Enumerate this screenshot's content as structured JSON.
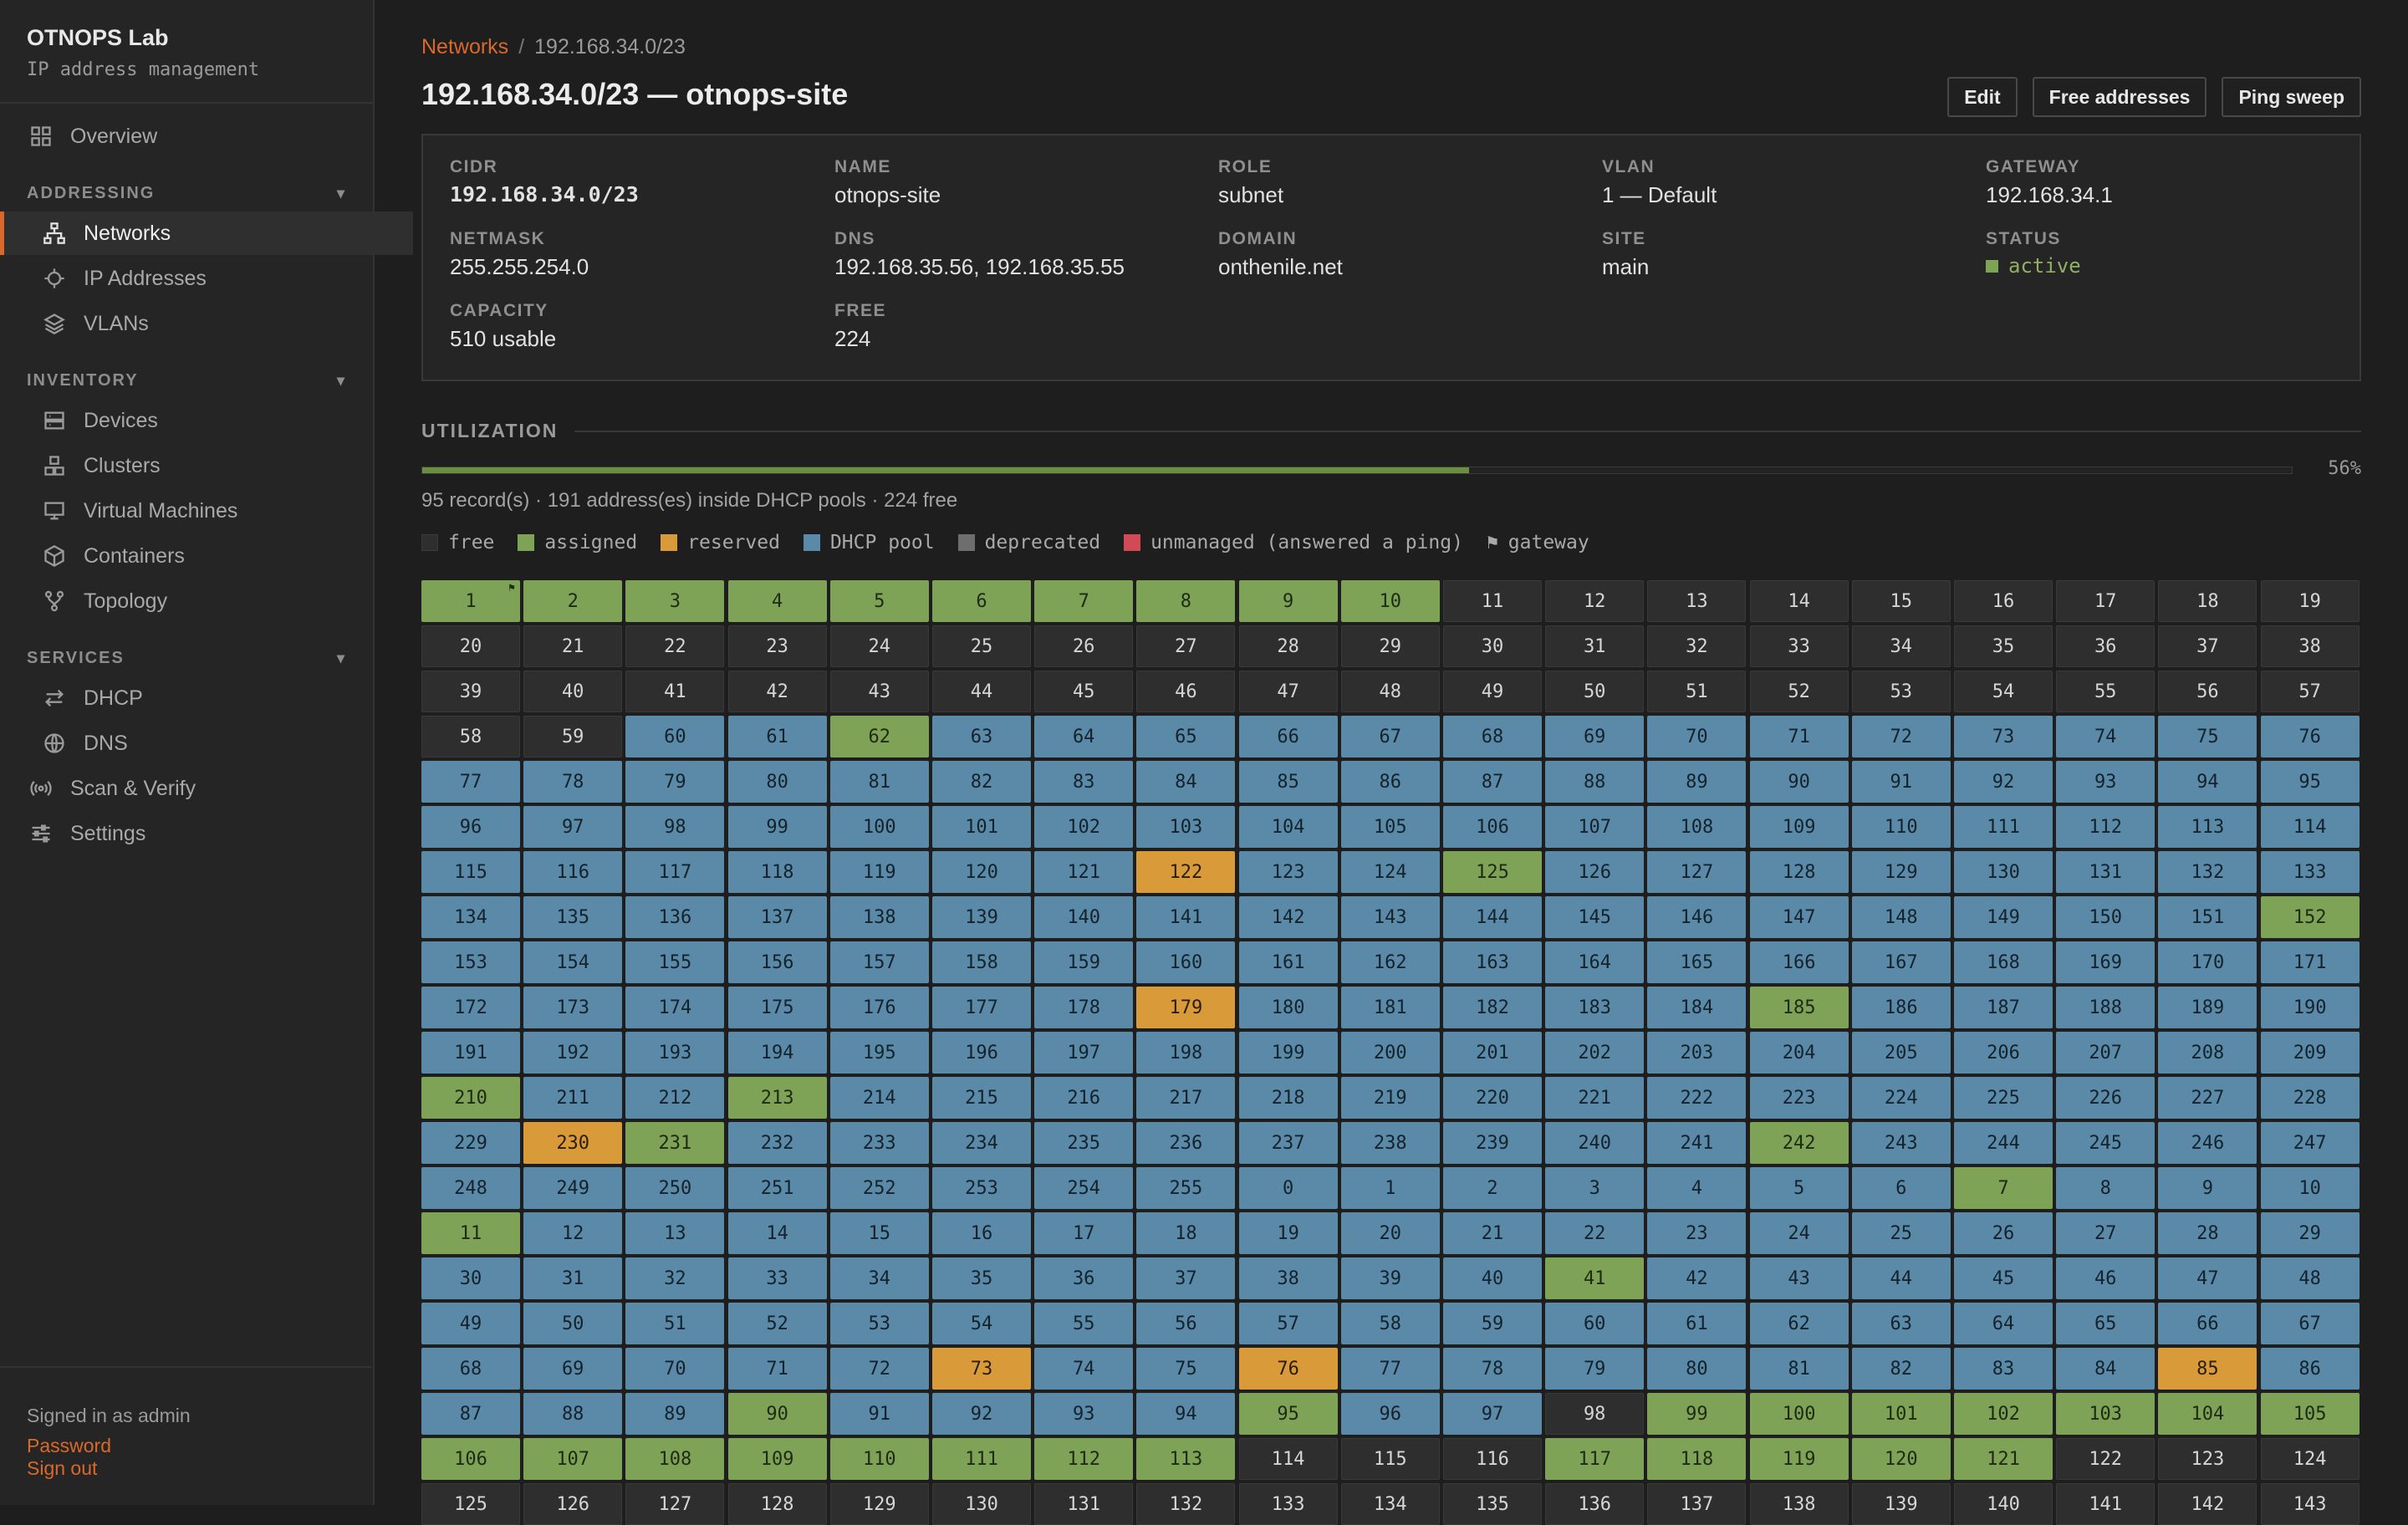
{
  "sidebar": {
    "brand_title": "OTNOPS Lab",
    "brand_subtitle": "IP address management",
    "overview": "Overview",
    "addressing_header": "ADDRESSING",
    "networks": "Networks",
    "ip_addresses": "IP Addresses",
    "vlans": "VLANs",
    "inventory_header": "INVENTORY",
    "devices": "Devices",
    "clusters": "Clusters",
    "virtual_machines": "Virtual Machines",
    "containers": "Containers",
    "topology": "Topology",
    "services_header": "SERVICES",
    "dhcp": "DHCP",
    "dns": "DNS",
    "scan_verify": "Scan & Verify",
    "settings": "Settings",
    "chevron": "▾",
    "signed_in": "Signed in as admin",
    "password": "Password",
    "sign_out": "Sign out"
  },
  "breadcrumb": {
    "parent": "Networks",
    "separator": "/",
    "current": "192.168.34.0/23"
  },
  "title": "192.168.34.0/23 — otnops-site",
  "actions": {
    "edit": "Edit",
    "free_addresses": "Free addresses",
    "ping_sweep": "Ping sweep"
  },
  "info": {
    "cidr_label": "CIDR",
    "cidr": "192.168.34.0/23",
    "name_label": "NAME",
    "name": "otnops-site",
    "role_label": "ROLE",
    "role": "subnet",
    "vlan_label": "VLAN",
    "vlan": "1 — Default",
    "gateway_label": "GATEWAY",
    "gateway": "192.168.34.1",
    "netmask_label": "NETMASK",
    "netmask": "255.255.254.0",
    "dns_label": "DNS",
    "dns": "192.168.35.56, 192.168.35.55",
    "domain_label": "DOMAIN",
    "domain": "onthenile.net",
    "site_label": "SITE",
    "site": "main",
    "status_label": "STATUS",
    "status": "active",
    "capacity_label": "CAPACITY",
    "capacity": "510 usable",
    "free_label": "FREE",
    "free": "224"
  },
  "utilization": {
    "heading": "UTILIZATION",
    "percent": 56,
    "percent_label": "56%",
    "summary": "95 record(s) · 191 address(es) inside DHCP pools · 224 free"
  },
  "legend": {
    "free": "free",
    "assigned": "assigned",
    "reserved": "reserved",
    "dhcp": "DHCP pool",
    "deprecated": "deprecated",
    "unmanaged": "unmanaged (answered a ping)",
    "gateway": "gateway",
    "gateway_glyph": "⚑"
  },
  "colors": {
    "accent": "#d9692a",
    "free": "#2e2e2f",
    "assigned": "#7ea356",
    "reserved": "#d99a39",
    "dhcp": "#5a8aa8",
    "deprecated": "#6e6e6e",
    "unmanaged": "#d14b57"
  },
  "grid": {
    "columns": 19,
    "status_codes": {
      "f": "free",
      "a": "assigned",
      "r": "reserved",
      "d": "DHCP pool"
    },
    "cells": "aaaaaaaaaafffffffffffffffffffffffffffffffffffffffffffffffffddadddddddddddddddddddddddddddddddddddddddddddddddddddddddddddrddaddddddddddddddddddddddddddaddddddddddddddddddddddddddrdddddaddddddddddddddddddddddddaddaddddddddddddddddraddddddddddaddddddddddddddddddddadddadddddddddddddddddddddddddddddadddddddddddddddddddddddddddddddrddrddddddddrddddaddddaddfaaaaaaaaaaaaaaafffaaaaafffffffffffffffffffffffffffffffaafafffffffffffffaaaaaaafaafffffffafffafffffffaffafffffaaffaaaaaaaafaffff",
    "gateway_index": 0,
    "labels": [
      "1",
      "2",
      "3",
      "4",
      "5",
      "6",
      "7",
      "8",
      "9",
      "10",
      "11",
      "12",
      "13",
      "14",
      "15",
      "16",
      "17",
      "18",
      "19",
      "20",
      "21",
      "22",
      "23",
      "24",
      "25",
      "26",
      "27",
      "28",
      "29",
      "30",
      "31",
      "32",
      "33",
      "34",
      "35",
      "36",
      "37",
      "38",
      "39",
      "40",
      "41",
      "42",
      "43",
      "44",
      "45",
      "46",
      "47",
      "48",
      "49",
      "50",
      "51",
      "52",
      "53",
      "54",
      "55",
      "56",
      "57",
      "58",
      "59",
      "60",
      "61",
      "62",
      "63",
      "64",
      "65",
      "66",
      "67",
      "68",
      "69",
      "70",
      "71",
      "72",
      "73",
      "74",
      "75",
      "76",
      "77",
      "78",
      "79",
      "80",
      "81",
      "82",
      "83",
      "84",
      "85",
      "86",
      "87",
      "88",
      "89",
      "90",
      "91",
      "92",
      "93",
      "94",
      "95",
      "96",
      "97",
      "98",
      "99",
      "100",
      "101",
      "102",
      "103",
      "104",
      "105",
      "106",
      "107",
      "108",
      "109",
      "110",
      "111",
      "112",
      "113",
      "114",
      "115",
      "116",
      "117",
      "118",
      "119",
      "120",
      "121",
      "122",
      "123",
      "124",
      "125",
      "126",
      "127",
      "128",
      "129",
      "130",
      "131",
      "132",
      "133",
      "134",
      "135",
      "136",
      "137",
      "138",
      "139",
      "140",
      "141",
      "142",
      "143",
      "144",
      "145",
      "146",
      "147",
      "148",
      "149",
      "150",
      "151",
      "152",
      "153",
      "154",
      "155",
      "156",
      "157",
      "158",
      "159",
      "160",
      "161",
      "162",
      "163",
      "164",
      "165",
      "166",
      "167",
      "168",
      "169",
      "170",
      "171",
      "172",
      "173",
      "174",
      "175",
      "176",
      "177",
      "178",
      "179",
      "180",
      "181",
      "182",
      "183",
      "184",
      "185",
      "186",
      "187",
      "188",
      "189",
      "190",
      "191",
      "192",
      "193",
      "194",
      "195",
      "196",
      "197",
      "198",
      "199",
      "200",
      "201",
      "202",
      "203",
      "204",
      "205",
      "206",
      "207",
      "208",
      "209",
      "210",
      "211",
      "212",
      "213",
      "214",
      "215",
      "216",
      "217",
      "218",
      "219",
      "220",
      "221",
      "222",
      "223",
      "224",
      "225",
      "226",
      "227",
      "228",
      "229",
      "230",
      "231",
      "232",
      "233",
      "234",
      "235",
      "236",
      "237",
      "238",
      "239",
      "240",
      "241",
      "242",
      "243",
      "244",
      "245",
      "246",
      "247",
      "248",
      "249",
      "250",
      "251",
      "252",
      "253",
      "254",
      "255",
      "0",
      "1",
      "2",
      "3",
      "4",
      "5",
      "6",
      "7",
      "8",
      "9",
      "10",
      "11",
      "12",
      "13",
      "14",
      "15",
      "16",
      "17",
      "18",
      "19",
      "20",
      "21",
      "22",
      "23",
      "24",
      "25",
      "26",
      "27",
      "28",
      "29",
      "30",
      "31",
      "32",
      "33",
      "34",
      "35",
      "36",
      "37",
      "38",
      "39",
      "40",
      "41",
      "42",
      "43",
      "44",
      "45",
      "46",
      "47",
      "48",
      "49",
      "50",
      "51",
      "52",
      "53",
      "54",
      "55",
      "56",
      "57",
      "58",
      "59",
      "60",
      "61",
      "62",
      "63",
      "64",
      "65",
      "66",
      "67",
      "68",
      "69",
      "70",
      "71",
      "72",
      "73",
      "74",
      "75",
      "76",
      "77",
      "78",
      "79",
      "80",
      "81",
      "82",
      "83",
      "84",
      "85",
      "86",
      "87",
      "88",
      "89",
      "90",
      "91",
      "92",
      "93",
      "94",
      "95",
      "96",
      "97",
      "98",
      "99",
      "100",
      "101",
      "102",
      "103",
      "104",
      "105",
      "106",
      "107",
      "108",
      "109",
      "110",
      "111",
      "112",
      "113",
      "114",
      "115",
      "116",
      "117",
      "118",
      "119",
      "120",
      "121",
      "122",
      "123",
      "124",
      "125",
      "126",
      "127",
      "128",
      "129",
      "130",
      "131",
      "132",
      "133",
      "134",
      "135",
      "136",
      "137",
      "138",
      "139",
      "140",
      "141",
      "142",
      "143"
    ]
  }
}
